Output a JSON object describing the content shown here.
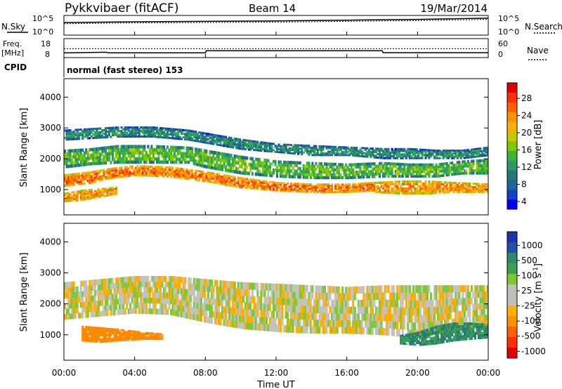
{
  "header": {
    "radar": "Pykkvibaer (fitACF)",
    "beam": "Beam 14",
    "date": "19/Mar/2014"
  },
  "nsky_panel": {
    "left_label": "N.Sky",
    "right_label": "N.Search",
    "left_ticks": [
      "10^5",
      "10^0"
    ],
    "right_ticks": [
      "10^5",
      "10^0"
    ]
  },
  "freq_panel": {
    "left_label_line1": "Freq.",
    "left_label_line2": "[MHz]",
    "right_label": "Nave",
    "left_ticks": [
      "18",
      "8"
    ],
    "right_ticks": [
      "60",
      "0"
    ]
  },
  "cpid_panel": {
    "label": "CPID",
    "mode": "normal (fast stereo) 153"
  },
  "power_colorbar": {
    "label": "Power [dB]",
    "ticks": [
      "28",
      "24",
      "20",
      "16",
      "12",
      "8",
      "4"
    ],
    "colors": [
      "#e00000",
      "#ff3000",
      "#ff6000",
      "#ff9000",
      "#ffb000",
      "#c8c800",
      "#80c800",
      "#3cb43c",
      "#2a9a6a",
      "#287878",
      "#1e64a0",
      "#1040c8",
      "#0000ff"
    ]
  },
  "velocity_colorbar": {
    "label_main": "Velocity  [m s",
    "label_sup": "-1",
    "label_end": "]",
    "ticks": [
      "1000",
      "500",
      "100",
      "25",
      "-25",
      "-100",
      "-500",
      "-1000"
    ],
    "colors": [
      "#2030b0",
      "#2050a8",
      "#2a8a6a",
      "#3ca050",
      "#80c830",
      "#c0c0b8",
      "#c0c0b8",
      "#ffb000",
      "#ff9000",
      "#ff6000",
      "#ff3000",
      "#e00000"
    ]
  },
  "range_axis": {
    "label": "Slant Range [km]",
    "ticks": [
      "4000",
      "3000",
      "2000",
      "1000"
    ]
  },
  "time_axis": {
    "label": "Time UT",
    "ticks": [
      "00:00",
      "04:00",
      "08:00",
      "12:00",
      "16:00",
      "20:00",
      "00:00"
    ]
  },
  "chart_data": {
    "type": "heatmap",
    "title": "Pykkvibaer (fitACF)",
    "xlabel": "Time UT",
    "ylabel": "Slant Range [km]",
    "xlim": [
      0,
      24
    ],
    "ylim": [
      180,
      4600
    ],
    "panels": [
      {
        "name": "power",
        "colorbar": "Power [dB]",
        "bands": [
          {
            "t": [
              0.0,
              1.5,
              3.0,
              5.0,
              7.0,
              8.0,
              10.0,
              12.0,
              14.0,
              16.0,
              18.0,
              19.5,
              21.0,
              22.5,
              24.0
            ],
            "lo": [
              2600,
              2650,
              2700,
              2700,
              2600,
              2500,
              2300,
              2200,
              2100,
              2100,
              2000,
              2000,
              2000,
              2000,
              2100
            ],
            "hi": [
              2950,
              3000,
              3050,
              3050,
              2950,
              2850,
              2650,
              2500,
              2450,
              2400,
              2350,
              2350,
              2300,
              2300,
              2400
            ],
            "level": 9
          },
          {
            "t": [
              0.0,
              1.5,
              3.0,
              5.0,
              7.0,
              8.0,
              10.0,
              12.0,
              14.0,
              16.0,
              18.0,
              19.5,
              21.0,
              22.5,
              24.0
            ],
            "lo": [
              1700,
              1800,
              1850,
              1850,
              1850,
              1700,
              1500,
              1400,
              1350,
              1350,
              1400,
              1400,
              1400,
              1500,
              1500
            ],
            "hi": [
              2300,
              2350,
              2450,
              2450,
              2400,
              2300,
              2100,
              1950,
              1900,
              1850,
              1900,
              1850,
              1850,
              1950,
              2000
            ],
            "level": 13
          },
          {
            "t": [
              0.0,
              1.5,
              2.5,
              4.0,
              6.0,
              8.0,
              10.0,
              12.0,
              14.0,
              16.0,
              17.5
            ],
            "lo": [
              1100,
              1200,
              1350,
              1450,
              1400,
              1250,
              1050,
              950,
              900,
              900,
              950
            ],
            "hi": [
              1500,
              1600,
              1700,
              1800,
              1750,
              1600,
              1400,
              1250,
              1200,
              1200,
              1250
            ],
            "level": 24
          },
          {
            "t": [
              17.5,
              19.0,
              20.5,
              22.0,
              24.0
            ],
            "lo": [
              900,
              850,
              850,
              900,
              900
            ],
            "hi": [
              1250,
              1300,
              1300,
              1250,
              1200
            ],
            "level": 22
          },
          {
            "t": [
              0.0,
              1.0,
              2.0,
              3.0
            ],
            "lo": [
              600,
              650,
              750,
              850
            ],
            "hi": [
              900,
              1000,
              1050,
              1100
            ],
            "level": 22
          }
        ]
      },
      {
        "name": "velocity",
        "colorbar": "Velocity [m s-1]",
        "bands": [
          {
            "t": [
              0.0,
              2.0,
              4.0,
              6.0,
              8.0,
              10.0,
              12.0,
              14.0,
              16.0,
              18.0,
              20.0,
              22.0,
              24.0
            ],
            "lo": [
              1500,
              1600,
              1700,
              1650,
              1400,
              1200,
              1100,
              1050,
              1050,
              1000,
              900,
              1100,
              1300
            ],
            "hi": [
              2700,
              2800,
              2900,
              2900,
              2800,
              2700,
              2650,
              2600,
              2550,
              2600,
              2600,
              2600,
              2600
            ],
            "level": 0
          },
          {
            "t": [
              1.0,
              2.0,
              3.0,
              4.5,
              5.5
            ],
            "lo": [
              800,
              750,
              800,
              850,
              850
            ],
            "hi": [
              1300,
              1250,
              1200,
              1100,
              1050
            ],
            "level": -250
          },
          {
            "t": [
              19.0,
              20.0,
              21.0,
              22.0,
              23.0,
              24.0
            ],
            "lo": [
              700,
              650,
              700,
              800,
              850,
              900
            ],
            "hi": [
              1000,
              1100,
              1300,
              1400,
              1400,
              1350
            ],
            "level": 300
          }
        ]
      }
    ],
    "nsky": {
      "x": [
        0,
        4,
        8,
        12,
        16,
        20,
        24
      ],
      "y": [
        3.2,
        3.4,
        3.5,
        3.6,
        3.8,
        4.0,
        4.3
      ]
    },
    "frequency": {
      "x": [
        0,
        2.4,
        2.5,
        8.0,
        8.05,
        18.0,
        18.05,
        24
      ],
      "y": [
        10.5,
        10.8,
        10.5,
        10.5,
        11.6,
        11.6,
        10.6,
        10.6
      ]
    },
    "nave": {
      "x": [
        0,
        24
      ],
      "y": [
        28,
        28
      ]
    }
  }
}
